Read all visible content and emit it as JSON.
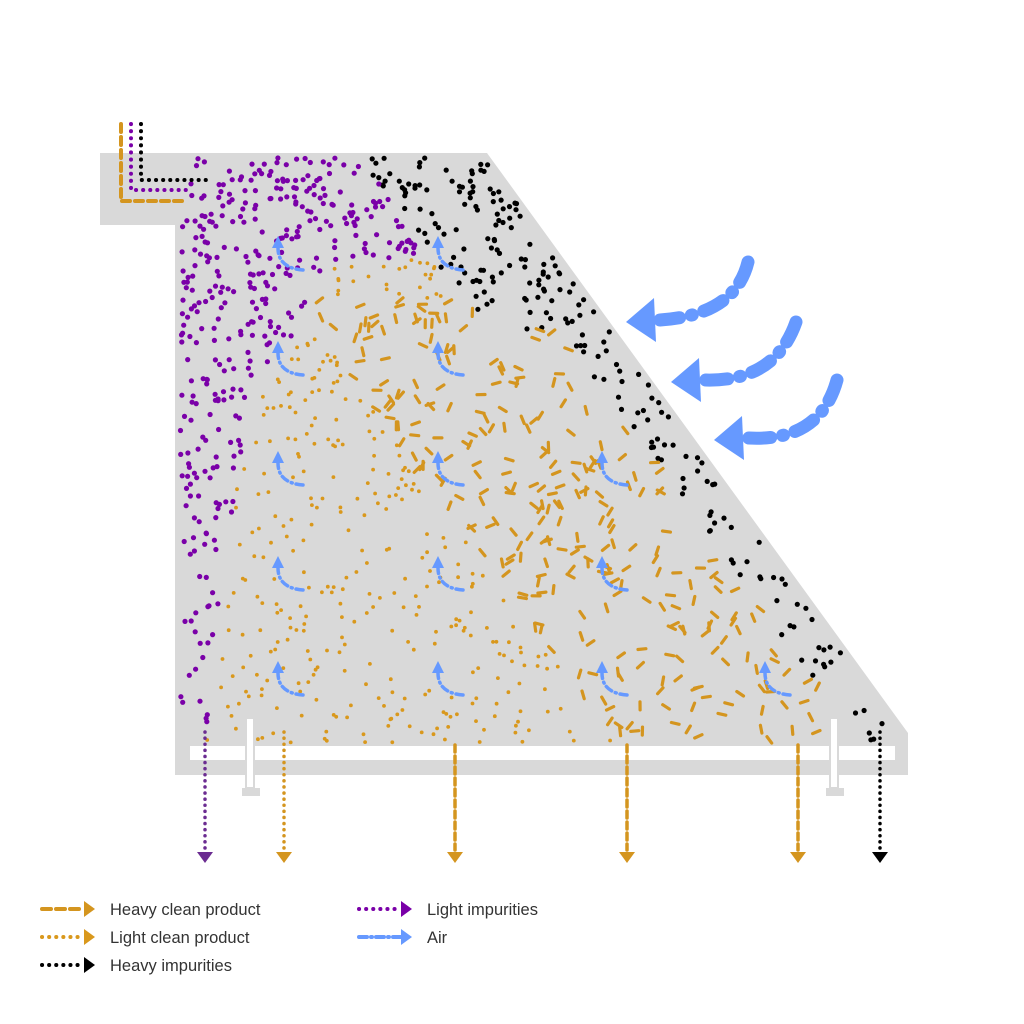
{
  "colors": {
    "chamber": "#d9d9d9",
    "heavy_clean": "#d4951f",
    "light_clean": "#d9981c",
    "heavy_impurities": "#000000",
    "light_impurities": "#7a00a8",
    "air": "#6699ff",
    "background": "#ffffff"
  },
  "legend": [
    {
      "key": "heavy_clean",
      "label": "Heavy clean product",
      "style": "dashed",
      "color": "#d4951f"
    },
    {
      "key": "light_clean",
      "label": "Light clean product",
      "style": "dotted",
      "color": "#d9981c"
    },
    {
      "key": "heavy_impurities",
      "label": "Heavy impurities",
      "style": "dotted",
      "color": "#000000"
    },
    {
      "key": "light_impurities",
      "label": "Light impurities",
      "style": "dotted",
      "color": "#7a00a8"
    },
    {
      "key": "air",
      "label": "Air",
      "style": "dash-dot",
      "color": "#6699ff"
    }
  ],
  "outlets": [
    "light_impurities",
    "light_clean",
    "heavy_clean",
    "heavy_clean",
    "heavy_clean",
    "heavy_impurities"
  ]
}
